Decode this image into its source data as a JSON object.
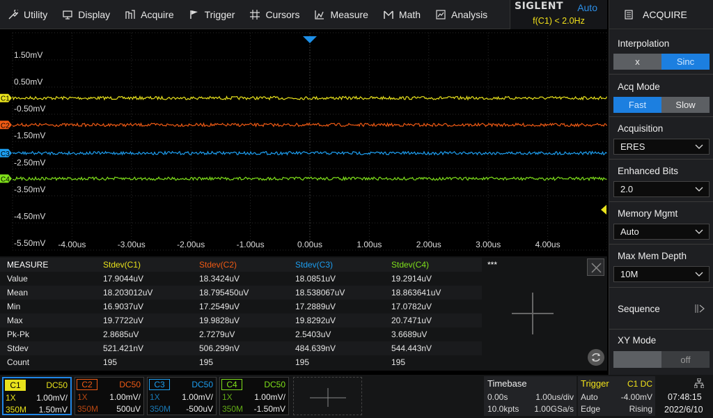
{
  "menu": [
    {
      "label": "Utility",
      "icon": "utility-icon"
    },
    {
      "label": "Display",
      "icon": "display-icon"
    },
    {
      "label": "Acquire",
      "icon": "acquire-icon"
    },
    {
      "label": "Trigger",
      "icon": "trigger-flag-icon"
    },
    {
      "label": "Cursors",
      "icon": "cursors-icon"
    },
    {
      "label": "Measure",
      "icon": "measure-icon"
    },
    {
      "label": "Math",
      "icon": "math-icon"
    },
    {
      "label": "Analysis",
      "icon": "analysis-icon"
    }
  ],
  "brand": {
    "logo": "SIGLENT",
    "mode": "Auto",
    "freq": "f(C1) < 2.0Hz"
  },
  "panel": {
    "title": "ACQUIRE",
    "interpolation": {
      "label": "Interpolation",
      "options": [
        "x",
        "Sinc"
      ],
      "selected": "Sinc"
    },
    "acq_mode": {
      "label": "Acq Mode",
      "options": [
        "Fast",
        "Slow"
      ],
      "selected": "Fast"
    },
    "acquisition": {
      "label": "Acquisition",
      "value": "ERES"
    },
    "enhanced_bits": {
      "label": "Enhanced Bits",
      "value": "2.0"
    },
    "memory_mgmt": {
      "label": "Memory Mgmt",
      "value": "Auto"
    },
    "max_mem_depth": {
      "label": "Max Mem Depth",
      "value": "10M"
    },
    "sequence": {
      "label": "Sequence"
    },
    "xy_mode": {
      "label": "XY Mode",
      "value": "off"
    }
  },
  "waveform": {
    "y_labels": [
      "1.50mV",
      "0.50mV",
      "-0.50mV",
      "-1.50mV",
      "-2.50mV",
      "-3.50mV",
      "-4.50mV",
      "-5.50mV"
    ],
    "x_labels": [
      "-4.00us",
      "-3.00us",
      "-2.00us",
      "-1.00us",
      "0.00us",
      "1.00us",
      "2.00us",
      "3.00us",
      "4.00us"
    ],
    "channels": [
      {
        "name": "C1",
        "color": "#e8e21c",
        "level_mv": -0.1
      },
      {
        "name": "C2",
        "color": "#f05a14",
        "level_mv": -1.1
      },
      {
        "name": "C3",
        "color": "#1d9ef0",
        "level_mv": -2.15
      },
      {
        "name": "C4",
        "color": "#7fe01a",
        "level_mv": -3.1
      }
    ]
  },
  "measure": {
    "header": [
      "MEASURE",
      "Stdev(C1)",
      "Stdev(C2)",
      "Stdev(C3)",
      "Stdev(C4)",
      "***"
    ],
    "rows": [
      [
        "Value",
        "17.9044uV",
        "18.3424uV",
        "18.0851uV",
        "19.2914uV"
      ],
      [
        "Mean",
        "18.203012uV",
        "18.795450uV",
        "18.538067uV",
        "18.863641uV"
      ],
      [
        "Min",
        "16.9037uV",
        "17.2549uV",
        "17.2889uV",
        "17.0782uV"
      ],
      [
        "Max",
        "19.7722uV",
        "19.9828uV",
        "19.8292uV",
        "20.7471uV"
      ],
      [
        "Pk-Pk",
        "2.8685uV",
        "2.7279uV",
        "2.5403uV",
        "3.6689uV"
      ],
      [
        "Stdev",
        "521.421nV",
        "506.299nV",
        "484.639nV",
        "544.443nV"
      ],
      [
        "Count",
        "195",
        "195",
        "195",
        "195"
      ]
    ]
  },
  "channels_bar": [
    {
      "name": "C1",
      "coupling": "DC50",
      "probe": "1X",
      "scale": "1.00mV/",
      "bw": "350M",
      "offset": "1.50mV",
      "color": "#e8e21c",
      "active": true
    },
    {
      "name": "C2",
      "coupling": "DC50",
      "probe": "1X",
      "scale": "1.00mV/",
      "bw": "350M",
      "offset": "500uV",
      "color": "#f05a14",
      "active": false
    },
    {
      "name": "C3",
      "coupling": "DC50",
      "probe": "1X",
      "scale": "1.00mV/",
      "bw": "350M",
      "offset": "-500uV",
      "color": "#1d9ef0",
      "active": false
    },
    {
      "name": "C4",
      "coupling": "DC50",
      "probe": "1X",
      "scale": "1.00mV/",
      "bw": "350M",
      "offset": "-1.50mV",
      "color": "#7fe01a",
      "active": false
    }
  ],
  "timebase": {
    "label": "Timebase",
    "delay": "0.00s",
    "scale": "1.00us/div",
    "points": "10.0kpts",
    "rate": "1.00GSa/s"
  },
  "trigger": {
    "label": "Trigger",
    "source": "C1 DC",
    "mode": "Auto",
    "level": "-4.00mV",
    "type": "Edge",
    "slope": "Rising"
  },
  "clock": {
    "time": "07:48:15",
    "date": "2022/6/10"
  }
}
